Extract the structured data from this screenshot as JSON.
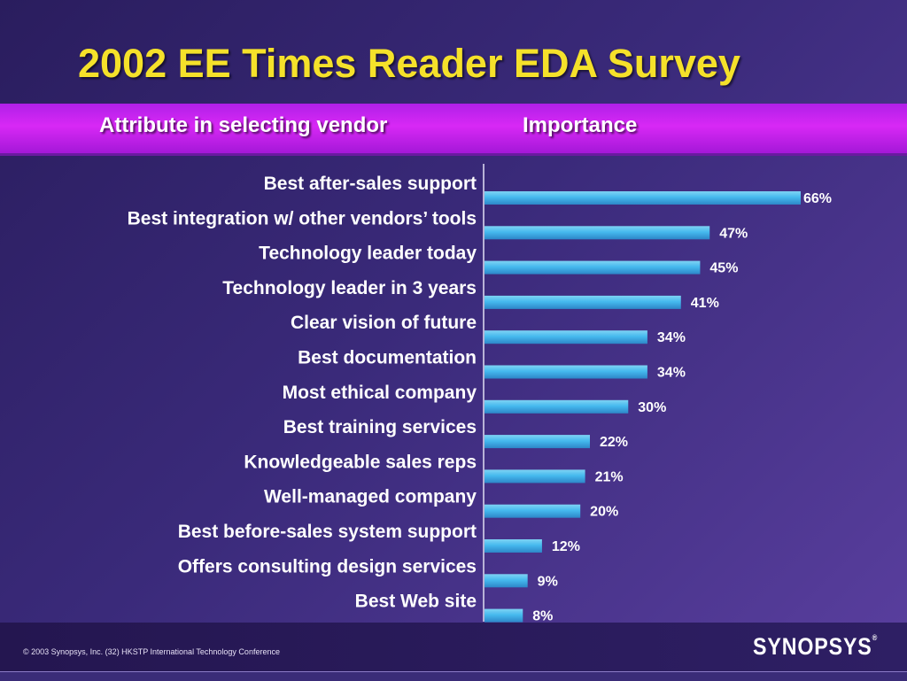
{
  "title": "2002 EE Times Reader EDA Survey",
  "header": {
    "attribute_label": "Attribute in selecting vendor",
    "importance_label": "Importance"
  },
  "colors": {
    "title": "#f5e12a",
    "band": "#d828f5",
    "bar": "#45b9ee",
    "bar_highlight": "#7fd3f4"
  },
  "chart_data": {
    "type": "bar",
    "orientation": "horizontal",
    "title": "",
    "xlabel": "",
    "ylabel": "",
    "xlim": [
      0,
      70
    ],
    "grid": false,
    "categories": [
      "Best after-sales support",
      "Best integration w/ other vendors’ tools",
      "Technology leader today",
      "Technology leader in 3 years",
      "Clear vision of future",
      "Best documentation",
      "Most ethical company",
      "Best training services",
      "Knowledgeable sales reps",
      "Well-managed company",
      "Best before-sales system support",
      "Offers consulting design services",
      "Best Web site"
    ],
    "values": [
      66,
      47,
      45,
      41,
      34,
      34,
      30,
      22,
      21,
      20,
      12,
      9,
      8
    ],
    "value_labels": [
      "66%",
      "47%",
      "45%",
      "41%",
      "34%",
      "34%",
      "30%",
      "22%",
      "21%",
      "20%",
      "12%",
      "9%",
      "8%"
    ]
  },
  "footer": {
    "copyright": "© 2003 Synopsys, Inc. (32) HKSTP International Technology Conference",
    "logo_text": "SYNOPSYS",
    "logo_mark": "®"
  }
}
